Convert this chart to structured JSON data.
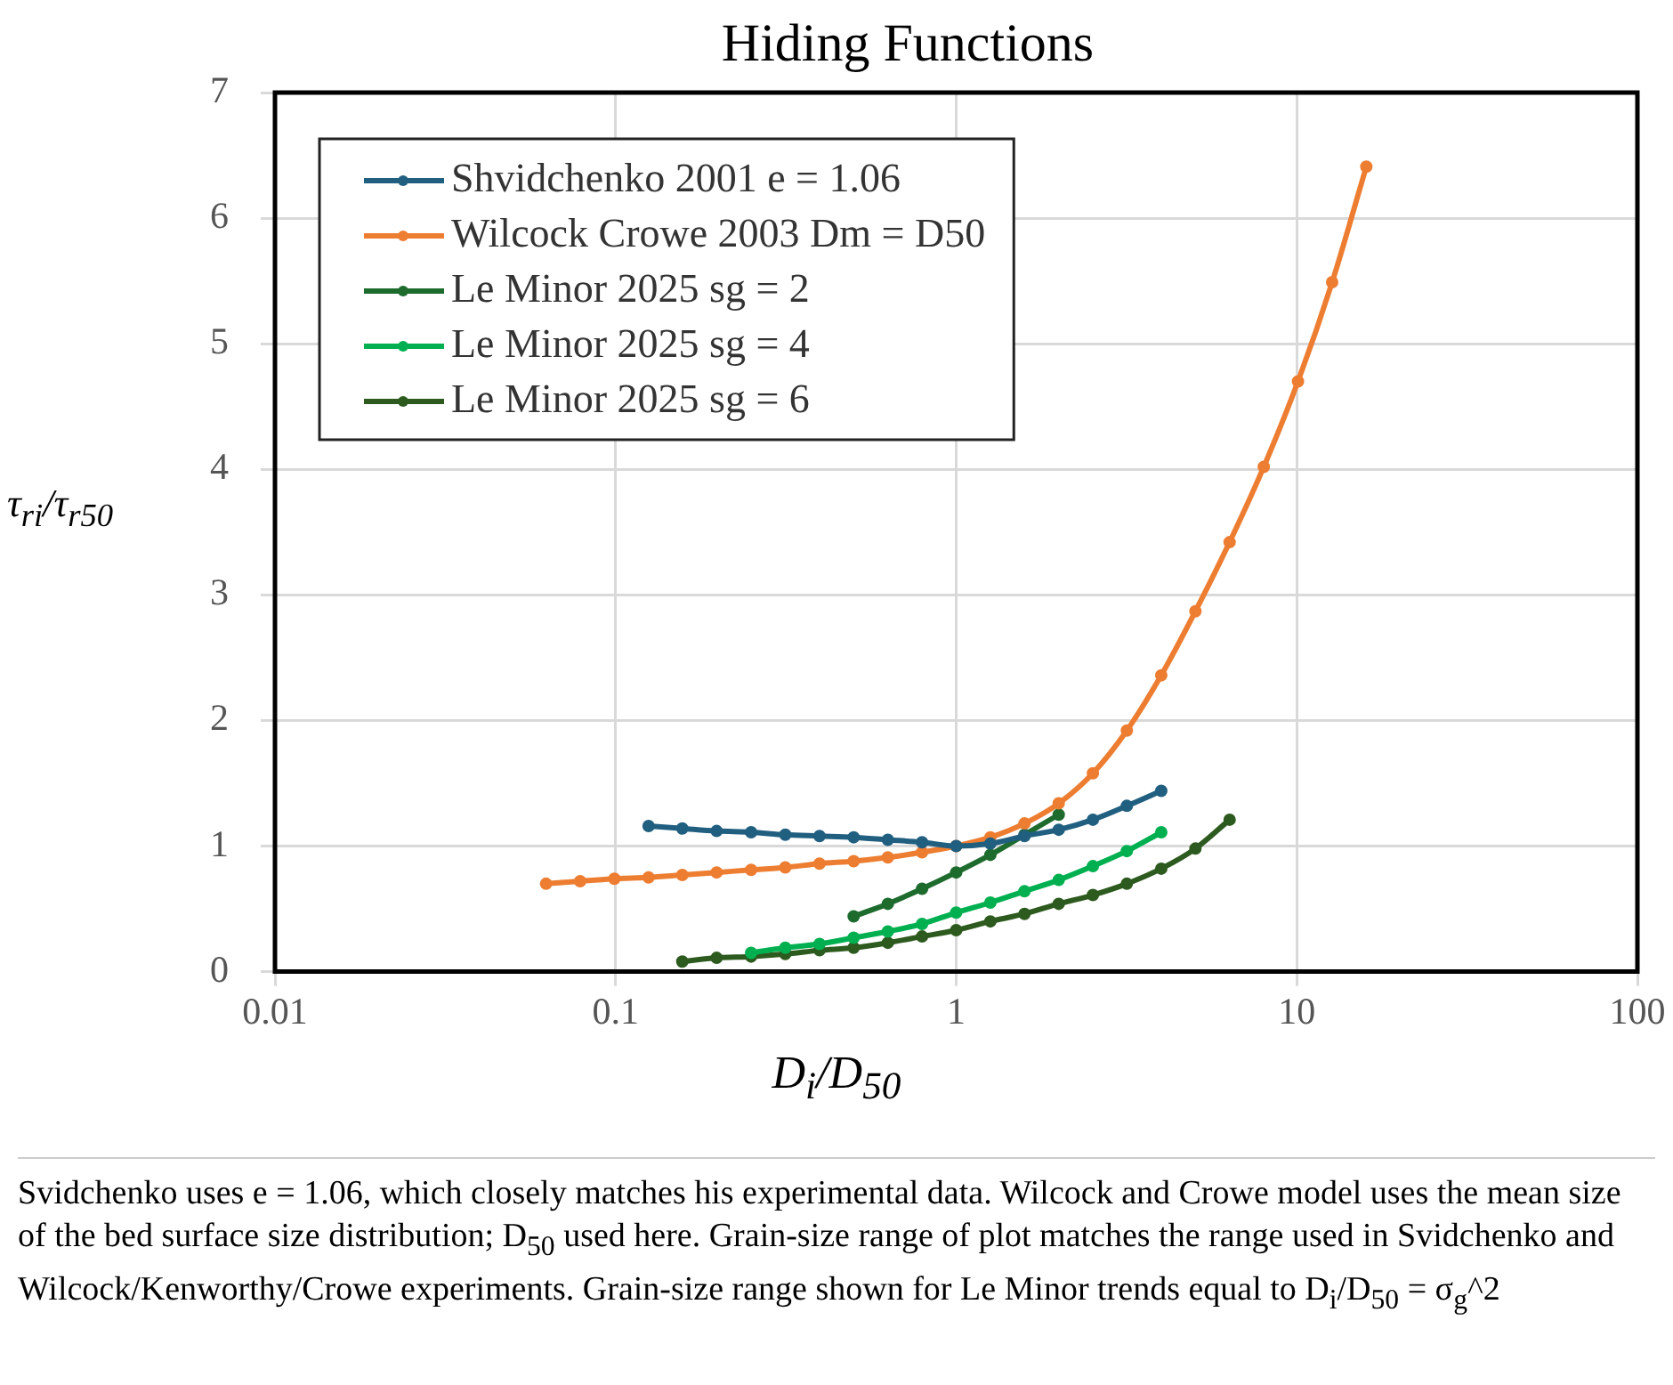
{
  "chart_data": {
    "type": "line",
    "title": "Hiding Functions",
    "xlabel": "D$_{i}$/D$_{50}$",
    "ylabel": "τ$_{ri}$/τ$_{r50}$",
    "log": "x",
    "xlim": [
      0.01,
      100
    ],
    "xticks": [
      0.01,
      0.1,
      1,
      10,
      100
    ],
    "ylim": [
      0,
      7
    ],
    "yticks": [
      0,
      1,
      2,
      3,
      4,
      5,
      6,
      7
    ],
    "grid": true,
    "legend": "top left",
    "marker": "circle",
    "line_style": "solid",
    "series": [
      {
        "name": "Shvidchenko 2001 e = 1.06",
        "color": "#215f80",
        "x": [
          0.125,
          0.157,
          0.198,
          0.25,
          0.315,
          0.397,
          0.5,
          0.63,
          0.794,
          1,
          1.26,
          1.587,
          2,
          2.52,
          3.17,
          4
        ],
        "values": [
          1.16,
          1.14,
          1.12,
          1.11,
          1.09,
          1.08,
          1.07,
          1.05,
          1.03,
          1.0,
          1.02,
          1.08,
          1.13,
          1.21,
          1.32,
          1.44
        ]
      },
      {
        "name": "Wilcock Crowe 2003 Dm = D50",
        "color": "#ed7d31",
        "x": [
          0.0625,
          0.0787,
          0.0992,
          0.125,
          0.157,
          0.198,
          0.25,
          0.315,
          0.397,
          0.5,
          0.63,
          0.794,
          1,
          1.26,
          1.587,
          2,
          2.52,
          3.17,
          4,
          5.04,
          6.35,
          8,
          10.08,
          12.7,
          16
        ],
        "values": [
          0.7,
          0.72,
          0.74,
          0.75,
          0.77,
          0.79,
          0.81,
          0.83,
          0.86,
          0.88,
          0.91,
          0.95,
          1.0,
          1.07,
          1.18,
          1.34,
          1.58,
          1.92,
          2.36,
          2.87,
          3.42,
          4.02,
          4.7,
          5.49,
          6.41
        ]
      },
      {
        "name": "Le Minor 2025 sg = 2",
        "color": "#1e6b2e",
        "x": [
          0.5,
          0.63,
          0.794,
          1,
          1.26,
          1.587,
          2
        ],
        "values": [
          0.44,
          0.54,
          0.66,
          0.79,
          0.93,
          1.09,
          1.25
        ]
      },
      {
        "name": "Le Minor 2025 sg = 4",
        "color": "#00b050",
        "x": [
          0.25,
          0.315,
          0.397,
          0.5,
          0.63,
          0.794,
          1,
          1.26,
          1.587,
          2,
          2.52,
          3.17,
          4
        ],
        "values": [
          0.15,
          0.19,
          0.22,
          0.27,
          0.32,
          0.38,
          0.47,
          0.55,
          0.64,
          0.73,
          0.84,
          0.96,
          1.11
        ]
      },
      {
        "name": "Le Minor 2025 sg = 6",
        "color": "#2d5a1e",
        "x": [
          0.157,
          0.198,
          0.25,
          0.315,
          0.397,
          0.5,
          0.63,
          0.794,
          1,
          1.26,
          1.587,
          2,
          2.52,
          3.17,
          4,
          5.04,
          6.35
        ],
        "values": [
          0.08,
          0.11,
          0.12,
          0.14,
          0.17,
          0.19,
          0.23,
          0.28,
          0.33,
          0.4,
          0.46,
          0.54,
          0.61,
          0.7,
          0.82,
          0.98,
          1.21
        ]
      }
    ],
    "annotations": [
      "Svidchenko uses e = 1.06, which closely matches his experimental data. Wilcock and Crowe model uses the mean size of the bed surface size distribution;  D$_{50}$ used here. Grain-size range of plot matches the range used in Svidchenko  and Wilcock/Kenworthy/Crowe experiments. Grain-size range  shown for Le Minor trends equal to D$_{i}$/D$_{50}$ =  σ$_{g}$^2"
    ]
  }
}
